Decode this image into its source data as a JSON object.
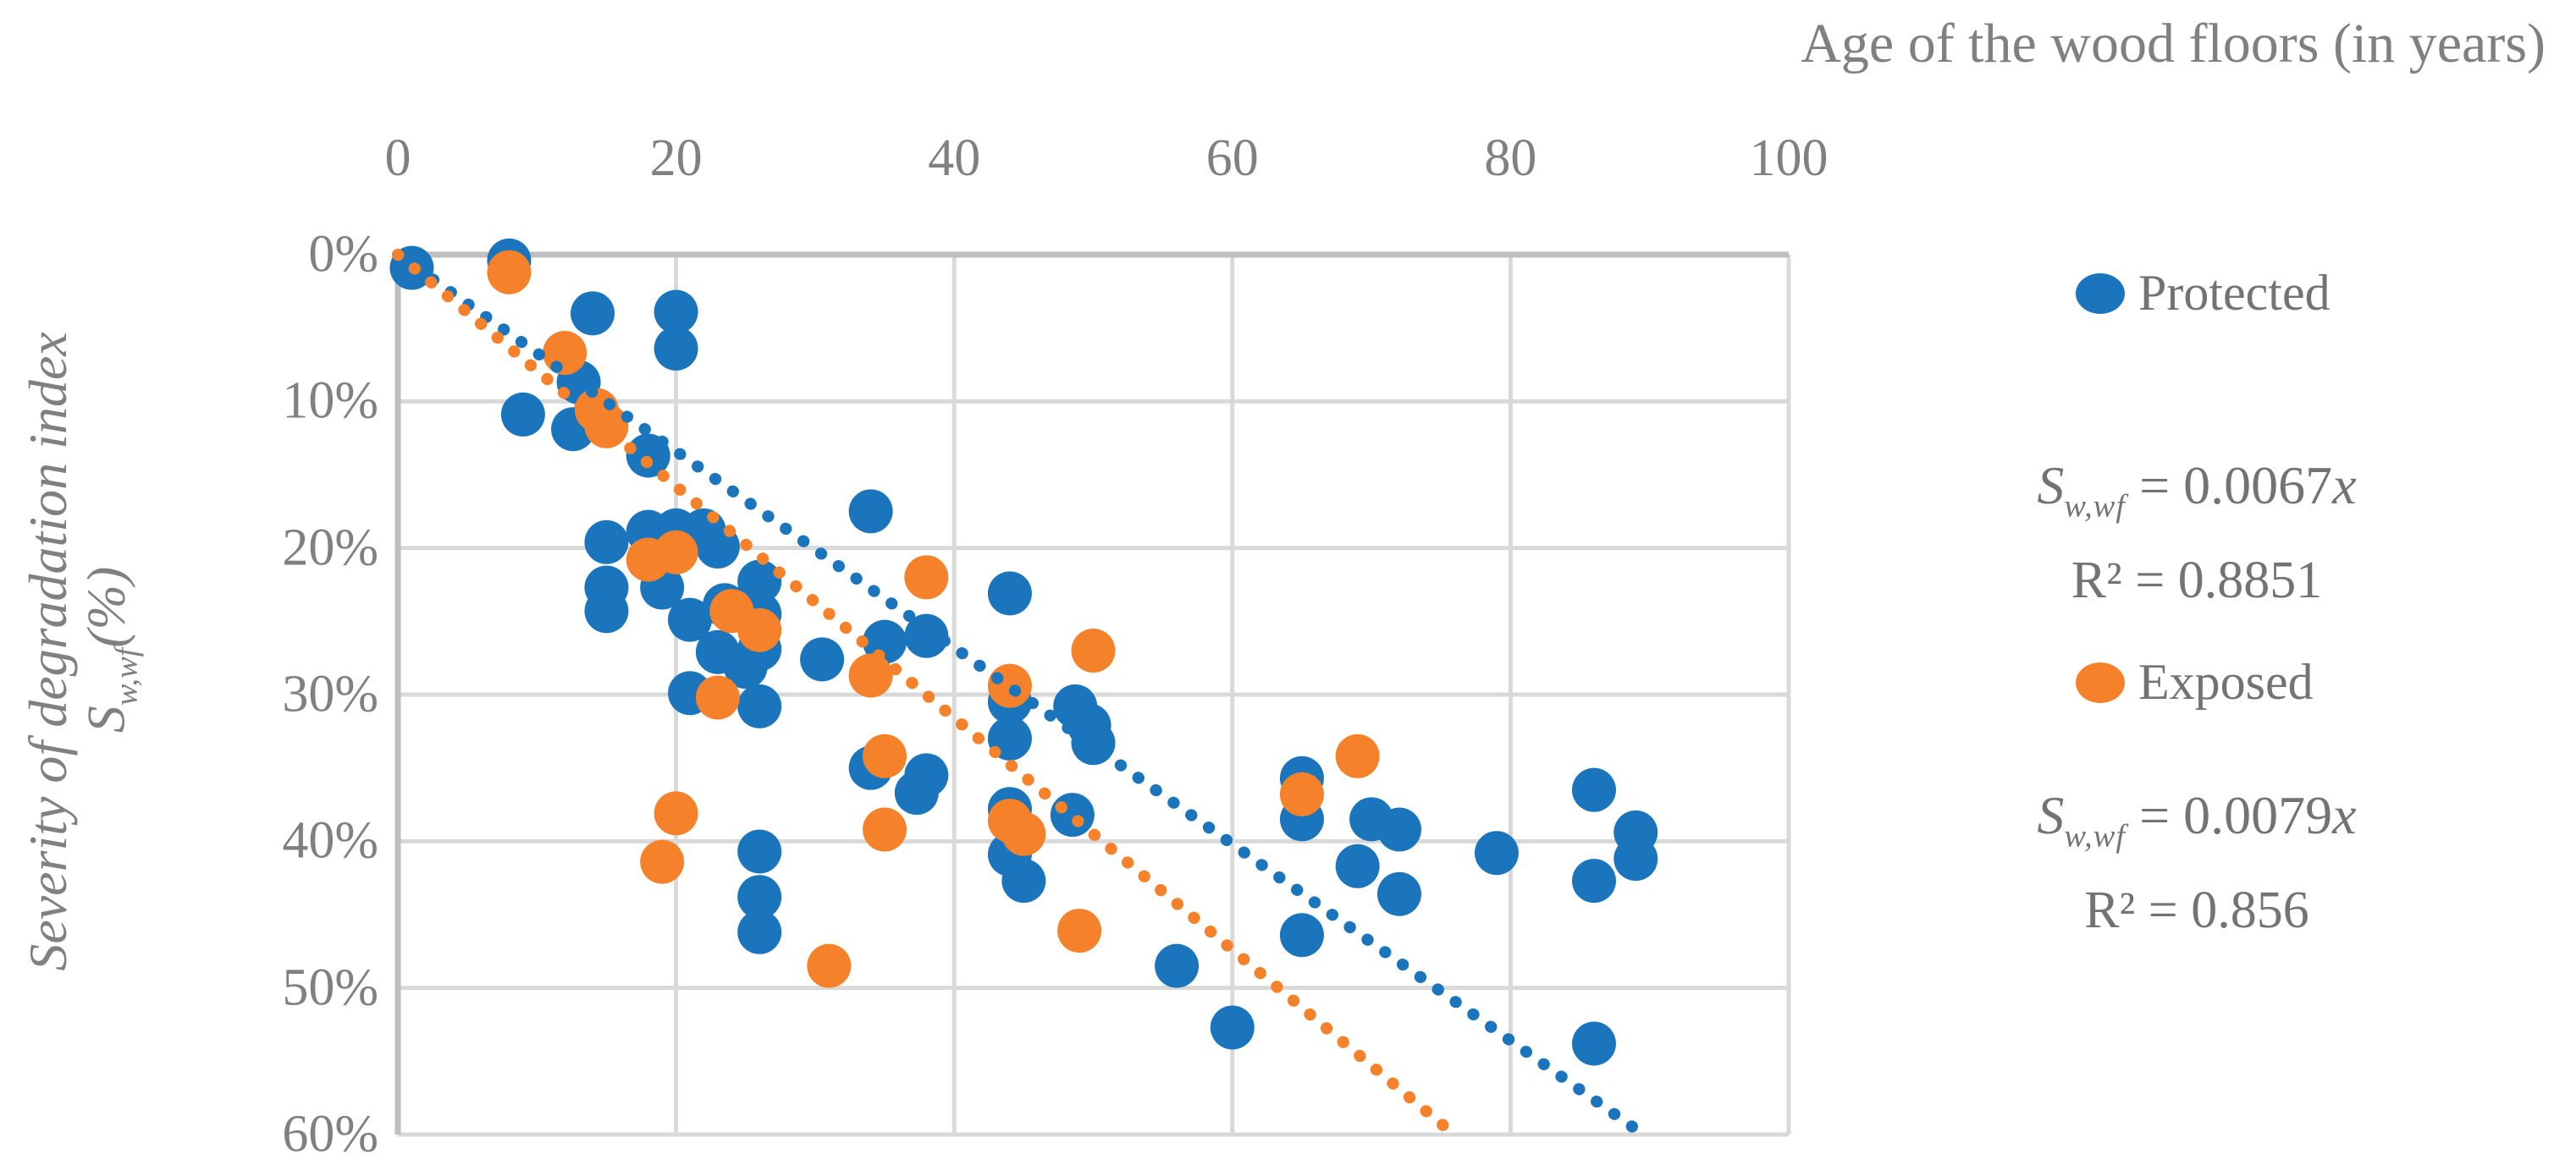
{
  "title": {
    "x_axis": "Age of the wood floors (in years)"
  },
  "y_axis_title": {
    "line1": "Severity of degradation index",
    "line2_base": "S",
    "line2_sub": "w,wf",
    "line2_unit": "(%)"
  },
  "legend": [
    {
      "label": "Protected",
      "color": "#1B75BC"
    },
    {
      "label": "Exposed",
      "color": "#F5822A"
    }
  ],
  "equations": [
    {
      "lhs_base": "S",
      "lhs_sub": "w,wf",
      "rhs_value": " = 0.0067",
      "rhs_var": "x",
      "r2": "R² = 0.8851"
    },
    {
      "lhs_base": "S",
      "lhs_sub": "w,wf",
      "rhs_value": " = 0.0079",
      "rhs_var": "x",
      "r2": "R² = 0.856"
    }
  ],
  "chart_data": {
    "type": "scatter",
    "title": "",
    "xlabel": "Age of the wood floors (in years)",
    "ylabel": "Severity of degradation index Sw,wf (%)",
    "xlim": [
      0,
      100
    ],
    "ylim_pct": [
      0,
      60
    ],
    "x_ticks": [
      0,
      20,
      40,
      60,
      80,
      100
    ],
    "y_ticks": [
      "0%",
      "10%",
      "20%",
      "30%",
      "40%",
      "50%",
      "60%"
    ],
    "y_tick_values": [
      0,
      10,
      20,
      30,
      40,
      50,
      60
    ],
    "grid": true,
    "y_axis_inverted_downward": true,
    "legend_position": "right",
    "colors": {
      "grid": "#D9D9D9",
      "axis": "#BFBFBF",
      "tick_text": "#808080",
      "protected": "#1B75BC",
      "exposed": "#F5822A"
    },
    "series": [
      {
        "name": "Protected",
        "color": "#1B75BC",
        "points": [
          [
            1,
            0.9
          ],
          [
            8,
            0.4
          ],
          [
            9,
            10.9
          ],
          [
            12.6,
            11.9
          ],
          [
            13,
            8.7
          ],
          [
            14,
            4
          ],
          [
            15,
            19.6
          ],
          [
            15,
            22.7
          ],
          [
            15,
            24.3
          ],
          [
            18,
            13.7
          ],
          [
            18,
            18.9
          ],
          [
            19,
            22.7
          ],
          [
            20,
            3.9
          ],
          [
            20,
            6.4
          ],
          [
            20,
            18.8
          ],
          [
            21,
            24.9
          ],
          [
            21,
            29.9
          ],
          [
            22,
            18.8
          ],
          [
            23,
            19.9
          ],
          [
            23,
            27.1
          ],
          [
            23.5,
            23.9
          ],
          [
            25,
            28.1
          ],
          [
            26,
            22.3
          ],
          [
            26,
            24.5
          ],
          [
            26,
            26.9
          ],
          [
            26,
            30.8
          ],
          [
            26,
            40.7
          ],
          [
            26,
            43.8
          ],
          [
            26,
            46.2
          ],
          [
            30.5,
            27.6
          ],
          [
            34,
            17.5
          ],
          [
            34,
            35
          ],
          [
            35,
            26.4
          ],
          [
            37.3,
            36.7
          ],
          [
            38,
            26
          ],
          [
            38,
            35.5
          ],
          [
            44,
            23.1
          ],
          [
            44,
            30.5
          ],
          [
            44,
            33
          ],
          [
            44,
            37.8
          ],
          [
            44,
            40.9
          ],
          [
            45,
            42.7
          ],
          [
            48.5,
            38.2
          ],
          [
            48.7,
            30.8
          ],
          [
            49.7,
            32.1
          ],
          [
            50,
            33.3
          ],
          [
            56,
            48.5
          ],
          [
            60,
            52.7
          ],
          [
            65,
            35.7
          ],
          [
            65,
            38.5
          ],
          [
            65,
            46.4
          ],
          [
            69,
            41.7
          ],
          [
            70,
            38.5
          ],
          [
            72,
            39.2
          ],
          [
            72,
            43.6
          ],
          [
            79,
            40.8
          ],
          [
            86,
            36.5
          ],
          [
            86,
            42.7
          ],
          [
            86,
            53.8
          ],
          [
            89,
            39.4
          ],
          [
            89,
            41.2
          ]
        ]
      },
      {
        "name": "Exposed",
        "color": "#F5822A",
        "points": [
          [
            8,
            1.2
          ],
          [
            12,
            6.7
          ],
          [
            14.3,
            10.6
          ],
          [
            15,
            11.7
          ],
          [
            18,
            20.8
          ],
          [
            19,
            41.4
          ],
          [
            20,
            20.3
          ],
          [
            20,
            38.1
          ],
          [
            23,
            30.2
          ],
          [
            24,
            24.3
          ],
          [
            26,
            25.6
          ],
          [
            31,
            48.5
          ],
          [
            34,
            28.7
          ],
          [
            35,
            34.2
          ],
          [
            35,
            39.2
          ],
          [
            38,
            22
          ],
          [
            44,
            29.4
          ],
          [
            44,
            38.6
          ],
          [
            45,
            39.5
          ],
          [
            49,
            46.1
          ],
          [
            50,
            27
          ],
          [
            65,
            36.8
          ],
          [
            69,
            34.2
          ]
        ]
      }
    ],
    "trendlines": [
      {
        "series": "Protected",
        "equation": "Sw,wf = 0.0067x",
        "slope_pct_per_year": 0.67,
        "r2": 0.8851,
        "color": "#1B75BC",
        "style": "dotted"
      },
      {
        "series": "Exposed",
        "equation": "Sw,wf = 0.0079x",
        "slope_pct_per_year": 0.79,
        "r2": 0.856,
        "color": "#F5822A",
        "style": "dotted"
      }
    ]
  }
}
